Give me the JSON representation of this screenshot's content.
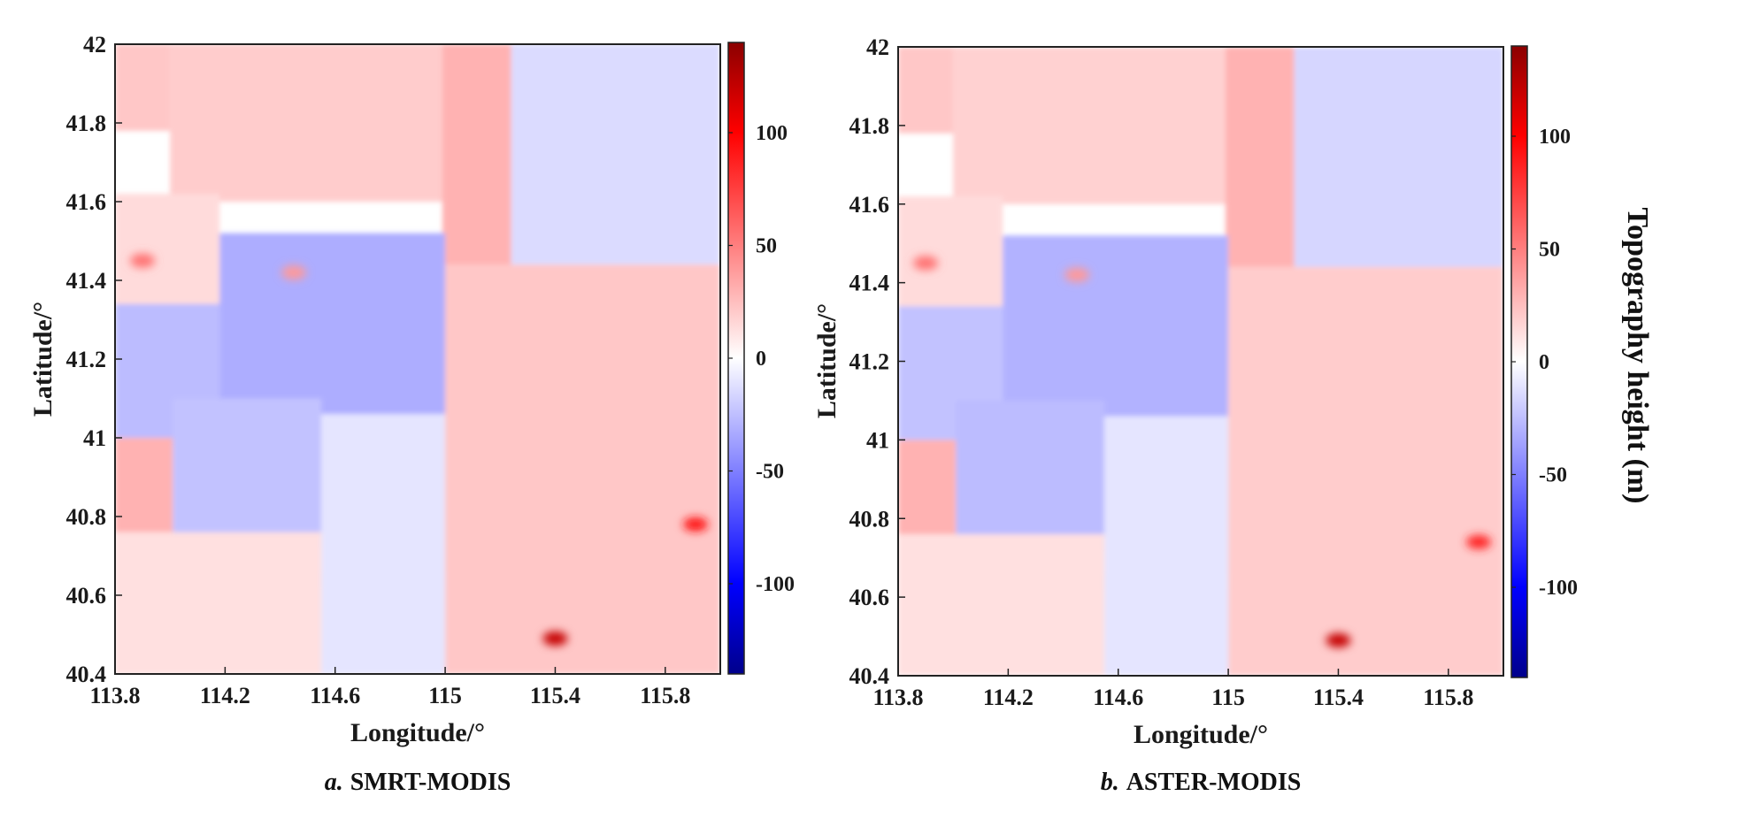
{
  "colormap": {
    "low": "#00008b",
    "mid": "#ffffff",
    "high": "#8b0000",
    "stops": [
      {
        "v": -140,
        "c": "#00008b"
      },
      {
        "v": -100,
        "c": "#0000ff"
      },
      {
        "v": -50,
        "c": "#7f7fff"
      },
      {
        "v": 0,
        "c": "#ffffff"
      },
      {
        "v": 50,
        "c": "#ff7f7f"
      },
      {
        "v": 100,
        "c": "#ff0000"
      },
      {
        "v": 140,
        "c": "#8b0000"
      }
    ]
  },
  "chart_data": [
    {
      "type": "heatmap",
      "panel_letter": "a.",
      "panel_name": "SMRT-MODIS",
      "xlabel": "Longitude/°",
      "ylabel": "Latitude/°",
      "xlim": [
        113.8,
        116.0
      ],
      "ylim": [
        40.4,
        42.0
      ],
      "xticks": [
        "113.8",
        "114.2",
        "114.6",
        "115",
        "115.4",
        "115.8"
      ],
      "yticks": [
        "42",
        "41.8",
        "41.6",
        "41.4",
        "41.2",
        "41",
        "40.8",
        "40.6",
        "40.4"
      ],
      "colorbar": {
        "label": "",
        "range": [
          -140,
          140
        ],
        "ticks": [
          "100",
          "50",
          "0",
          "-50",
          "-100"
        ]
      },
      "regions": [
        {
          "lon": [
            113.8,
            114.0
          ],
          "lat": [
            41.78,
            42.0
          ],
          "value": 22
        },
        {
          "lon": [
            114.0,
            114.99
          ],
          "lat": [
            41.6,
            42.0
          ],
          "value": 20
        },
        {
          "lon": [
            114.99,
            115.24
          ],
          "lat": [
            41.44,
            42.0
          ],
          "value": 30
        },
        {
          "lon": [
            115.24,
            116.0
          ],
          "lat": [
            41.44,
            42.0
          ],
          "value": -14
        },
        {
          "lon": [
            113.8,
            114.18
          ],
          "lat": [
            41.32,
            41.62
          ],
          "value": 14
        },
        {
          "lon": [
            114.18,
            115.0
          ],
          "lat": [
            41.06,
            41.52
          ],
          "value": -32
        },
        {
          "lon": [
            113.8,
            114.18
          ],
          "lat": [
            40.98,
            41.34
          ],
          "value": -26
        },
        {
          "lon": [
            113.8,
            114.01
          ],
          "lat": [
            40.76,
            41.0
          ],
          "value": 30
        },
        {
          "lon": [
            114.01,
            114.55
          ],
          "lat": [
            40.72,
            41.1
          ],
          "value": -24
        },
        {
          "lon": [
            114.55,
            115.0
          ],
          "lat": [
            40.62,
            41.06
          ],
          "value": -10
        },
        {
          "lon": [
            115.0,
            116.0
          ],
          "lat": [
            40.4,
            41.44
          ],
          "value": 22
        },
        {
          "lon": [
            113.8,
            114.55
          ],
          "lat": [
            40.4,
            40.76
          ],
          "value": 12
        },
        {
          "lon": [
            114.55,
            115.0
          ],
          "lat": [
            40.4,
            40.66
          ],
          "value": -10
        }
      ],
      "hotspots": [
        {
          "lon": 115.4,
          "lat": 40.49,
          "value": 120
        },
        {
          "lon": 115.91,
          "lat": 40.78,
          "value": 90
        },
        {
          "lon": 114.45,
          "lat": 41.42,
          "value": 40
        },
        {
          "lon": 113.9,
          "lat": 41.45,
          "value": 55
        }
      ]
    },
    {
      "type": "heatmap",
      "panel_letter": "b.",
      "panel_name": "ASTER-MODIS",
      "xlabel": "Longitude/°",
      "ylabel": "Latitude/°",
      "xlim": [
        113.8,
        116.0
      ],
      "ylim": [
        40.4,
        42.0
      ],
      "xticks": [
        "113.8",
        "114.2",
        "114.6",
        "115",
        "115.4",
        "115.8"
      ],
      "yticks": [
        "42",
        "41.8",
        "41.6",
        "41.4",
        "41.2",
        "41",
        "40.8",
        "40.6",
        "40.4"
      ],
      "colorbar": {
        "label": "Topography height (m)",
        "range": [
          -140,
          140
        ],
        "ticks": [
          "100",
          "50",
          "0",
          "-50",
          "-100"
        ]
      },
      "regions": [
        {
          "lon": [
            113.8,
            114.0
          ],
          "lat": [
            41.78,
            42.0
          ],
          "value": 22
        },
        {
          "lon": [
            114.0,
            114.99
          ],
          "lat": [
            41.6,
            42.0
          ],
          "value": 18
        },
        {
          "lon": [
            114.99,
            115.24
          ],
          "lat": [
            41.44,
            42.0
          ],
          "value": 30
        },
        {
          "lon": [
            115.24,
            116.0
          ],
          "lat": [
            41.44,
            42.0
          ],
          "value": -16
        },
        {
          "lon": [
            113.8,
            114.18
          ],
          "lat": [
            41.32,
            41.62
          ],
          "value": 14
        },
        {
          "lon": [
            114.18,
            115.0
          ],
          "lat": [
            41.06,
            41.52
          ],
          "value": -30
        },
        {
          "lon": [
            113.8,
            114.18
          ],
          "lat": [
            40.98,
            41.34
          ],
          "value": -24
        },
        {
          "lon": [
            113.8,
            114.01
          ],
          "lat": [
            40.76,
            41.0
          ],
          "value": 30
        },
        {
          "lon": [
            114.01,
            114.55
          ],
          "lat": [
            40.72,
            41.1
          ],
          "value": -26
        },
        {
          "lon": [
            114.55,
            115.0
          ],
          "lat": [
            40.62,
            41.06
          ],
          "value": -10
        },
        {
          "lon": [
            115.0,
            116.0
          ],
          "lat": [
            40.4,
            41.44
          ],
          "value": 20
        },
        {
          "lon": [
            113.8,
            114.55
          ],
          "lat": [
            40.4,
            40.76
          ],
          "value": 12
        },
        {
          "lon": [
            114.55,
            115.0
          ],
          "lat": [
            40.4,
            40.66
          ],
          "value": -10
        }
      ],
      "hotspots": [
        {
          "lon": 115.4,
          "lat": 40.49,
          "value": 120
        },
        {
          "lon": 115.91,
          "lat": 40.74,
          "value": 85
        },
        {
          "lon": 114.45,
          "lat": 41.42,
          "value": 40
        },
        {
          "lon": 113.9,
          "lat": 41.45,
          "value": 55
        }
      ]
    }
  ]
}
